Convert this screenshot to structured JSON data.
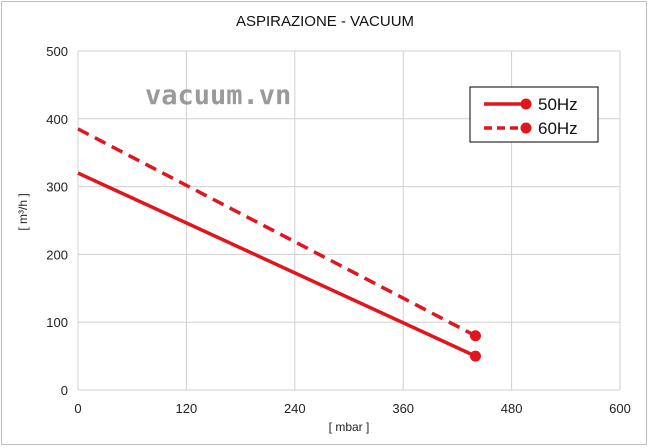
{
  "chart_data": {
    "type": "line",
    "title": "ASPIRAZIONE - VACUUM",
    "xlabel": "[ mbar ]",
    "ylabel": "[ m³/h ]",
    "xlim": [
      0,
      600
    ],
    "ylim": [
      0,
      500
    ],
    "xticks": [
      0,
      120,
      240,
      360,
      480,
      600
    ],
    "yticks": [
      0,
      100,
      200,
      300,
      400,
      500
    ],
    "grid": true,
    "legend_position": "top-right",
    "watermark": "vacuum.vn",
    "series": [
      {
        "name": "50Hz",
        "style": "solid",
        "color": "#e0161f",
        "x": [
          0,
          440
        ],
        "y": [
          320,
          50
        ],
        "markers": [
          false,
          true
        ]
      },
      {
        "name": "60Hz",
        "style": "dashed",
        "color": "#e0161f",
        "x": [
          0,
          440
        ],
        "y": [
          385,
          80
        ],
        "markers": [
          false,
          true
        ]
      }
    ]
  }
}
